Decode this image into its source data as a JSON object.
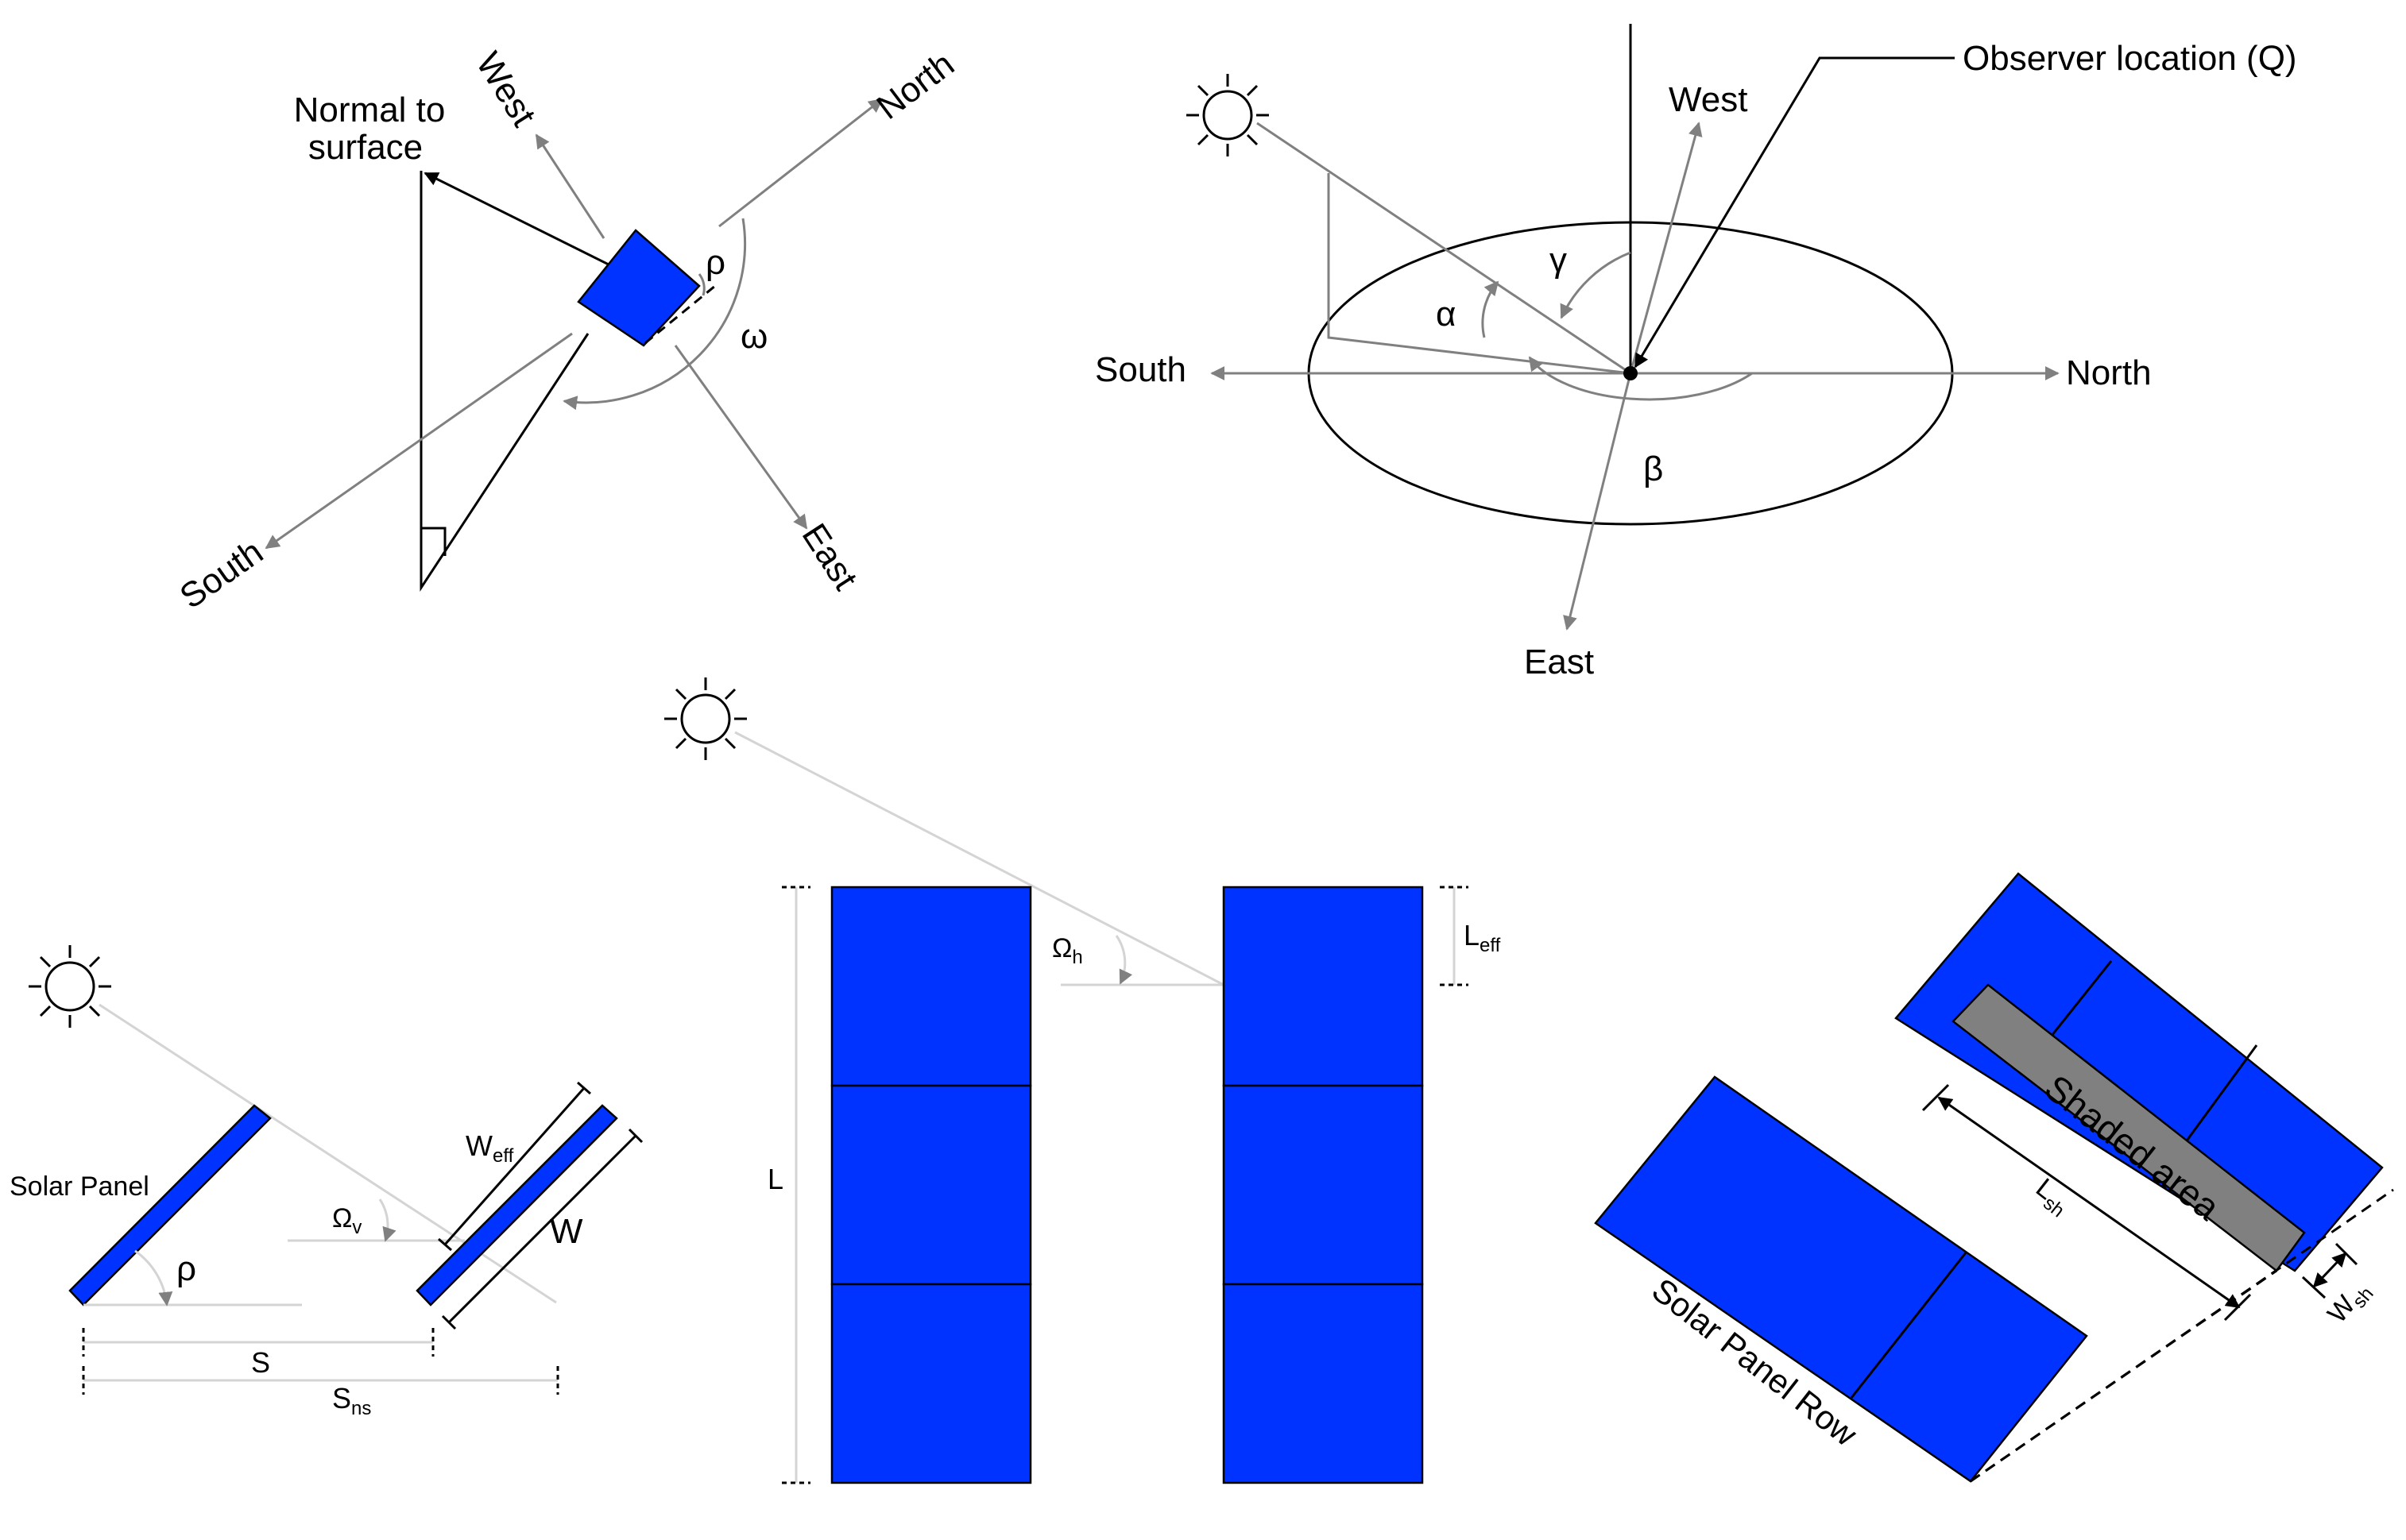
{
  "colors": {
    "panel_fill": "#0033ff",
    "shade_fill": "#808080",
    "arrow_gray": "#808080",
    "light_line": "#d4d4d4",
    "ink": "#000000"
  },
  "icons": [
    "sun-icon"
  ],
  "panel_a": {
    "normal_to_surface": [
      "Normal to",
      "surface"
    ],
    "west": "West",
    "north": "North",
    "south": "South",
    "east": "East",
    "rho": "ρ",
    "omega": "ω"
  },
  "panel_b": {
    "observer_location": "Observer location (Q)",
    "west": "West",
    "north": "North",
    "south": "South",
    "east": "East",
    "alpha": "α",
    "beta": "β",
    "gamma": "γ"
  },
  "panel_c": {
    "solar_panel": "Solar Panel",
    "rho": "ρ",
    "omega_main": "Ω",
    "omega_sub": "v",
    "w_eff_main": "W",
    "w_eff_sub": "eff",
    "w": "W",
    "s": "S",
    "s_ns_main": "S",
    "s_ns_sub": "ns"
  },
  "panel_d": {
    "omega_main": "Ω",
    "omega_sub": "h",
    "l": "L",
    "l_eff_main": "L",
    "l_eff_sub": "eff"
  },
  "panel_e": {
    "shaded_area": "Shaded area",
    "solar_panel_row": "Solar Panel Row",
    "l_sh_main": "L",
    "l_sh_sub": "sh",
    "w_sh_main": "W",
    "w_sh_sub": "sh"
  }
}
